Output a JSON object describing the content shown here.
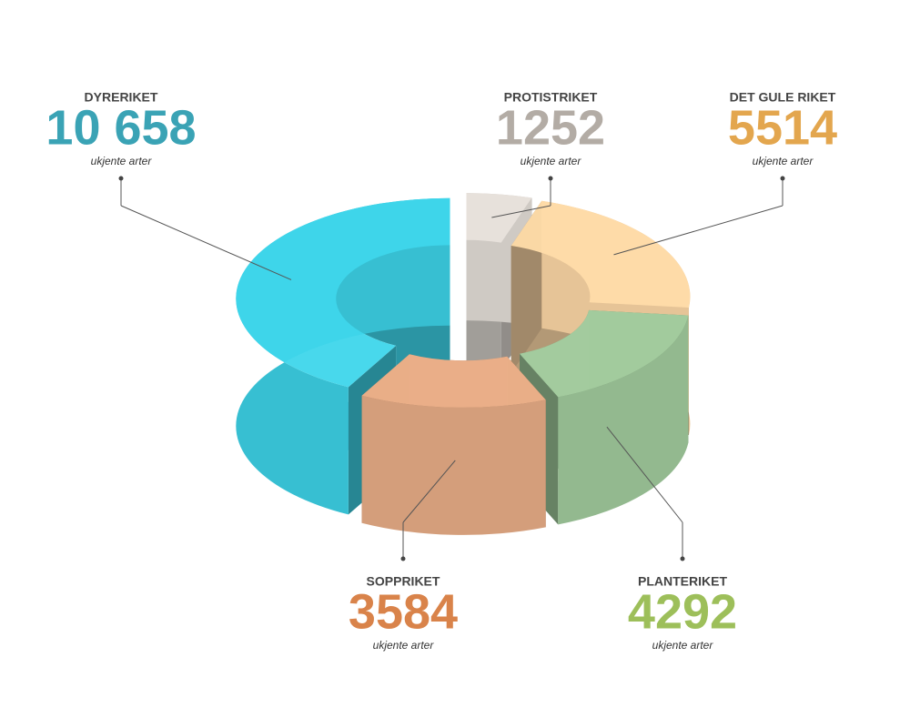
{
  "chart_data": {
    "type": "pie",
    "categories": [
      "PROTISTRIKET",
      "DET GULE RIKET",
      "PLANTERIKET",
      "SOPPRIKET",
      "DYRERIKET"
    ],
    "values": [
      1252,
      5514,
      4292,
      3584,
      10658
    ],
    "value_labels": [
      "1252",
      "5514",
      "4292",
      "3584",
      "10 658"
    ],
    "unit_label": "ukjente arter",
    "colors": [
      "#cfcac4",
      "#e6c497",
      "#93b98f",
      "#d49e7b",
      "#37bfd2"
    ],
    "label_colors": [
      "#b3aca5",
      "#e3a64e",
      "#9dbf5a",
      "#d9834a",
      "#3aa3b5"
    ]
  }
}
